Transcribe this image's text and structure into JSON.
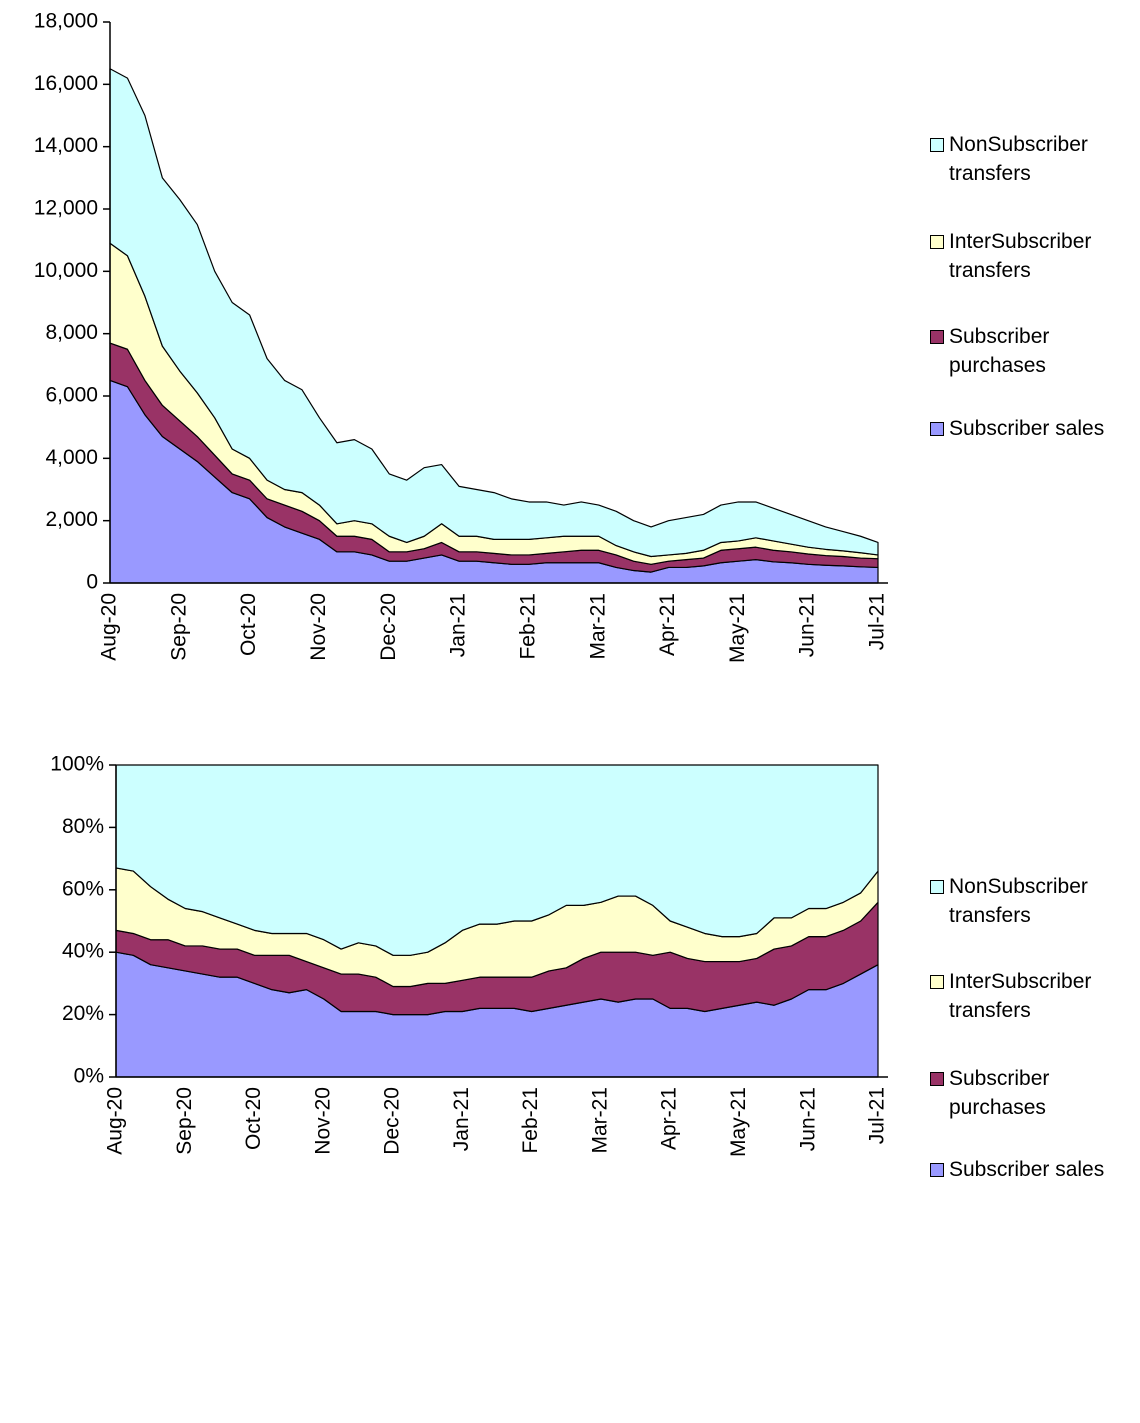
{
  "chart_data": [
    {
      "type": "area",
      "stacked": true,
      "legend": "right",
      "categories": [
        "Aug-20",
        null,
        null,
        null,
        "Sep-20",
        null,
        null,
        null,
        "Oct-20",
        null,
        null,
        null,
        "Nov-20",
        null,
        null,
        null,
        "Dec-20",
        null,
        null,
        null,
        "Jan-21",
        null,
        null,
        null,
        "Feb-21",
        null,
        null,
        null,
        "Mar-21",
        null,
        null,
        null,
        "Apr-21",
        null,
        null,
        null,
        "May-21",
        null,
        null,
        null,
        "Jun-21",
        null,
        null,
        null,
        "Jul-21"
      ],
      "ylim": [
        0,
        18000
      ],
      "yticks": [
        0,
        {
          "value": 2000,
          "label": "2,000"
        },
        {
          "value": 4000,
          "label": "4,000"
        },
        {
          "value": 6000,
          "label": "6,000"
        },
        {
          "value": 8000,
          "label": "8,000"
        },
        {
          "value": 10000,
          "label": "10,000"
        },
        {
          "value": 12000,
          "label": "12,000"
        },
        {
          "value": 14000,
          "label": "14,000"
        },
        {
          "value": 16000,
          "label": "16,000"
        },
        {
          "value": 18000,
          "label": "18,000"
        }
      ],
      "series": [
        {
          "name": "Subscriber sales",
          "color": "#9999ff",
          "values": [
            6500,
            6300,
            5400,
            4700,
            4300,
            3900,
            3400,
            2900,
            2700,
            2100,
            1800,
            1600,
            1400,
            1000,
            1000,
            900,
            700,
            700,
            800,
            900,
            700,
            700,
            650,
            600,
            600,
            650,
            650,
            650,
            650,
            500,
            400,
            350,
            500,
            500,
            550,
            650,
            700,
            750,
            680,
            650,
            600,
            570,
            550,
            520,
            500
          ]
        },
        {
          "name": "Subscriber purchases",
          "color": "#993366",
          "values": [
            1200,
            1200,
            1100,
            1000,
            900,
            800,
            700,
            600,
            600,
            600,
            700,
            700,
            600,
            500,
            500,
            500,
            300,
            300,
            300,
            400,
            300,
            300,
            300,
            300,
            300,
            300,
            350,
            400,
            400,
            400,
            300,
            250,
            200,
            250,
            250,
            400,
            400,
            400,
            370,
            350,
            330,
            310,
            300,
            280,
            280
          ]
        },
        {
          "name": "InterSubscriber transfers",
          "color": "#ffffcc",
          "values": [
            3200,
            3000,
            2700,
            1900,
            1600,
            1400,
            1200,
            800,
            700,
            600,
            500,
            600,
            500,
            400,
            500,
            500,
            500,
            300,
            400,
            600,
            500,
            500,
            450,
            500,
            500,
            500,
            500,
            450,
            450,
            300,
            300,
            250,
            200,
            200,
            250,
            250,
            250,
            300,
            300,
            250,
            220,
            200,
            180,
            170,
            120
          ]
        },
        {
          "name": "NonSubscriber transfers",
          "color": "#ccffff",
          "values": [
            5600,
            5700,
            5800,
            5400,
            5500,
            5400,
            4700,
            4700,
            4600,
            3900,
            3500,
            3300,
            2800,
            2600,
            2600,
            2400,
            2000,
            2000,
            2200,
            1900,
            1600,
            1500,
            1500,
            1300,
            1200,
            1150,
            1000,
            1100,
            1000,
            1100,
            1000,
            950,
            1100,
            1150,
            1150,
            1200,
            1250,
            1150,
            1050,
            950,
            850,
            720,
            620,
            530,
            400
          ]
        }
      ]
    },
    {
      "type": "area",
      "stacked": true,
      "legend": "right",
      "categories": [
        "Aug-20",
        null,
        null,
        null,
        "Sep-20",
        null,
        null,
        null,
        "Oct-20",
        null,
        null,
        null,
        "Nov-20",
        null,
        null,
        null,
        "Dec-20",
        null,
        null,
        null,
        "Jan-21",
        null,
        null,
        null,
        "Feb-21",
        null,
        null,
        null,
        "Mar-21",
        null,
        null,
        null,
        "Apr-21",
        null,
        null,
        null,
        "May-21",
        null,
        null,
        null,
        "Jun-21",
        null,
        null,
        null,
        "Jul-21"
      ],
      "ylim": [
        0,
        100
      ],
      "yticks": [
        {
          "value": 0,
          "label": "0%"
        },
        {
          "value": 20,
          "label": "20%"
        },
        {
          "value": 40,
          "label": "40%"
        },
        {
          "value": 60,
          "label": "60%"
        },
        {
          "value": 80,
          "label": "80%"
        },
        {
          "value": 100,
          "label": "100%"
        }
      ],
      "series": [
        {
          "name": "Subscriber sales",
          "color": "#9999ff",
          "values": [
            40,
            39,
            36,
            35,
            34,
            33,
            32,
            32,
            30,
            28,
            27,
            28,
            25,
            21,
            21,
            21,
            20,
            20,
            20,
            21,
            21,
            22,
            22,
            22,
            21,
            22,
            23,
            24,
            25,
            24,
            25,
            25,
            22,
            22,
            21,
            22,
            23,
            24,
            23,
            25,
            28,
            28,
            30,
            33,
            36
          ]
        },
        {
          "name": "Subscriber purchases",
          "color": "#993366",
          "values": [
            7,
            7,
            8,
            9,
            8,
            9,
            9,
            9,
            9,
            11,
            12,
            9,
            10,
            12,
            12,
            11,
            9,
            9,
            10,
            9,
            10,
            10,
            10,
            10,
            11,
            12,
            12,
            14,
            15,
            16,
            15,
            14,
            18,
            16,
            16,
            15,
            14,
            14,
            18,
            17,
            17,
            17,
            17,
            17,
            20
          ]
        },
        {
          "name": "InterSubscriber transfers",
          "color": "#ffffcc",
          "values": [
            20,
            20,
            17,
            13,
            12,
            11,
            10,
            8,
            8,
            7,
            7,
            9,
            9,
            8,
            10,
            10,
            10,
            10,
            10,
            13,
            16,
            17,
            17,
            18,
            18,
            18,
            20,
            17,
            16,
            18,
            18,
            16,
            10,
            10,
            9,
            8,
            8,
            8,
            10,
            9,
            9,
            9,
            9,
            9,
            10
          ]
        },
        {
          "name": "NonSubscriber transfers",
          "color": "#ccffff",
          "values": [
            33,
            34,
            39,
            43,
            46,
            47,
            49,
            51,
            53,
            54,
            54,
            54,
            56,
            59,
            57,
            58,
            61,
            61,
            60,
            57,
            53,
            51,
            51,
            50,
            50,
            48,
            45,
            45,
            44,
            42,
            42,
            45,
            50,
            52,
            54,
            55,
            55,
            54,
            49,
            49,
            46,
            46,
            44,
            41,
            34
          ]
        }
      ]
    }
  ]
}
